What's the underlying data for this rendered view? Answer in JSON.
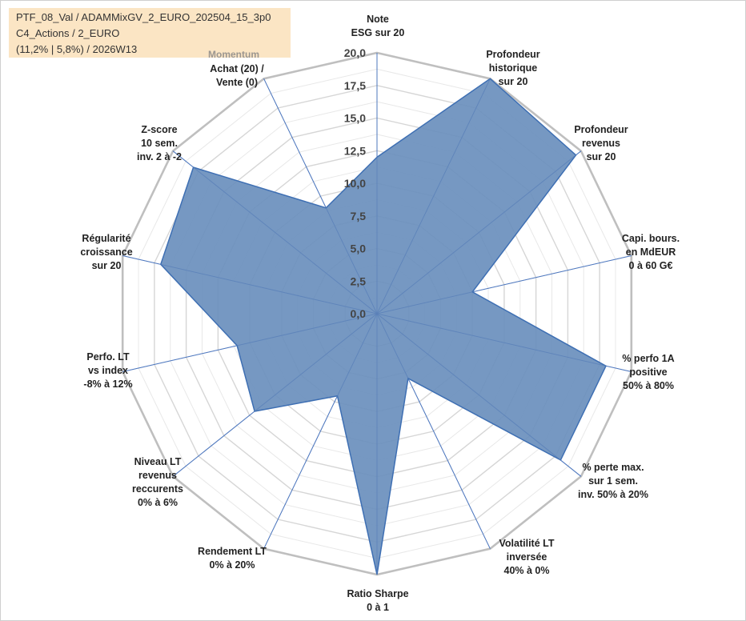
{
  "header": {
    "line1": "PTF_08_Val / ADAMMixGV_2_EURO_202504_15_3p0",
    "line2": "C4_Actions / 2_EURO",
    "line3": "(11,2% | 5,8%) / 2026W13"
  },
  "colors": {
    "fill": "#6a8fbd",
    "stroke": "#3e6fb3",
    "outer_ring": "#bfbfbf",
    "inner_ring": "#e8e8e8",
    "spoke": "#4472c4",
    "info_bg": "#fbe5c4"
  },
  "chart_data": {
    "type": "radar",
    "title": "",
    "rmin": 0,
    "rmax": 20,
    "tick_labels": [
      "0,0",
      "2,5",
      "5,0",
      "7,5",
      "10,0",
      "12,5",
      "15,0",
      "17,5",
      "20,0"
    ],
    "section_label": "Momentum",
    "axes": [
      {
        "label": [
          "Note",
          "ESG sur 20"
        ],
        "value": 12.0
      },
      {
        "label": [
          "Profondeur",
          "historique",
          "sur 20"
        ],
        "value": 20.0
      },
      {
        "label": [
          "Profondeur",
          "revenus",
          "sur 20"
        ],
        "value": 19.5
      },
      {
        "label": [
          "Capi. bours.",
          "en MdEUR",
          "0 à 60 G€"
        ],
        "value": 7.5
      },
      {
        "label": [
          "% perfo 1A",
          "positive",
          "50% à 80%"
        ],
        "value": 18.0
      },
      {
        "label": [
          "% perte max.",
          "sur 1 sem.",
          "inv. 50% à 20%"
        ],
        "value": 18.0
      },
      {
        "label": [
          "Volatilité LT",
          "inversée",
          "40% à 0%"
        ],
        "value": 5.5
      },
      {
        "label": [
          "Ratio Sharpe",
          "0 à 1"
        ],
        "value": 20.0
      },
      {
        "label": [
          "Rendement LT",
          "0% à 20%"
        ],
        "value": 7.0
      },
      {
        "label": [
          "Niveau LT",
          "revenus",
          "reccurents",
          "0% à 6%"
        ],
        "value": 12.0
      },
      {
        "label": [
          "Perfo. LT",
          "vs index",
          "-8% à 12%"
        ],
        "value": 11.0
      },
      {
        "label": [
          "Régularité",
          "croissance",
          "sur 20"
        ],
        "value": 17.0
      },
      {
        "label": [
          "Z-score",
          "10 sem.",
          "inv. 2 à -2"
        ],
        "value": 18.0
      },
      {
        "label": [
          "Achat (20) /",
          "Vente (0)"
        ],
        "value": 9.0
      }
    ]
  }
}
